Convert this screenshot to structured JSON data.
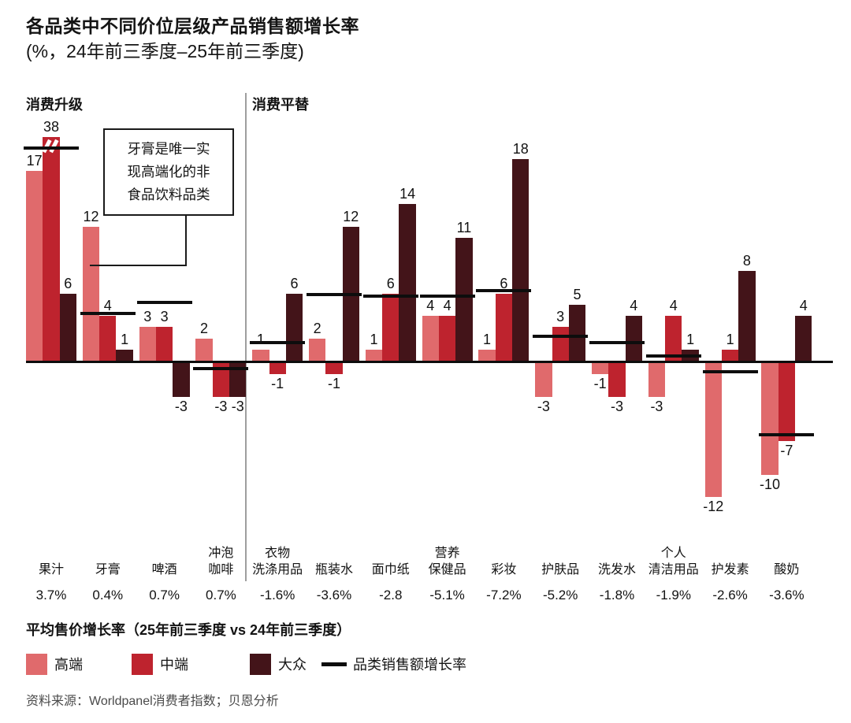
{
  "title": {
    "line1": "各品类中不同价位层级产品销售额增长率",
    "line2": "(%，24年前三季度–25年前三季度)"
  },
  "colors": {
    "high": "#E06A6C",
    "mid": "#BE232E",
    "mass": "#431419",
    "line": "#0D0D0D"
  },
  "annotation": {
    "lines": [
      "牙膏是唯一实",
      "现高端化的非",
      "食品饮料品类"
    ]
  },
  "legend": {
    "header": "平均售价增长率（25年前三季度 vs 24年前三季度）",
    "items": [
      {
        "key": "high",
        "label": "高端"
      },
      {
        "key": "mid",
        "label": "中端"
      },
      {
        "key": "mass",
        "label": "大众"
      }
    ],
    "line_label": "品类销售额增长率"
  },
  "source": "资料来源：Worldpanel消费者指数；贝恩分析",
  "chart_data": {
    "type": "bar",
    "unit": "%",
    "series_names": [
      "高端",
      "中端",
      "大众"
    ],
    "line_series_name": "品类销售额增长率",
    "avg_price_row_label": "平均售价增长率（25年前三季度 vs 24年前三季度）",
    "grid": false,
    "legend_position": "bottom",
    "ylim_display": [
      -13,
      21
    ],
    "sections": [
      {
        "label": "消费升级",
        "category_indexes": [
          0,
          1,
          2,
          3
        ]
      },
      {
        "label": "消费平替",
        "category_indexes": [
          4,
          5,
          6,
          7,
          8,
          9,
          10,
          11,
          12,
          13
        ]
      }
    ],
    "categories": [
      {
        "name": "果汁",
        "name_lines": [
          "果汁"
        ],
        "avg_price_change": "3.7%",
        "values": [
          17,
          38,
          6
        ],
        "category_growth_line": 19,
        "truncated_bar_index": 1,
        "truncated_display_value": 20
      },
      {
        "name": "牙膏",
        "name_lines": [
          "牙膏"
        ],
        "avg_price_change": "0.4%",
        "values": [
          12,
          4,
          1
        ],
        "category_growth_line": 4.2
      },
      {
        "name": "啤酒",
        "name_lines": [
          "啤酒"
        ],
        "avg_price_change": "0.7%",
        "values": [
          3,
          3,
          -3
        ],
        "category_growth_line": 5.2
      },
      {
        "name": "冲泡咖啡",
        "name_lines": [
          "冲泡",
          "咖啡"
        ],
        "avg_price_change": "0.7%",
        "values": [
          2,
          -3,
          -3
        ],
        "category_growth_line": -0.7
      },
      {
        "name": "衣物洗涤用品",
        "name_lines": [
          "衣物",
          "洗涤用品"
        ],
        "avg_price_change": "-1.6%",
        "values": [
          1,
          -1,
          6
        ],
        "category_growth_line": 1.6
      },
      {
        "name": "瓶装水",
        "name_lines": [
          "瓶装水"
        ],
        "avg_price_change": "-3.6%",
        "values": [
          2,
          -1,
          12
        ],
        "category_growth_line": 5.9
      },
      {
        "name": "面巾纸",
        "name_lines": [
          "面巾纸"
        ],
        "avg_price_change": "-2.8",
        "values": [
          1,
          6,
          14
        ],
        "category_growth_line": 5.8
      },
      {
        "name": "营养保健品",
        "name_lines": [
          "营养",
          "保健品"
        ],
        "avg_price_change": "-5.1%",
        "values": [
          4,
          4,
          11
        ],
        "category_growth_line": 5.8
      },
      {
        "name": "彩妆",
        "name_lines": [
          "彩妆"
        ],
        "avg_price_change": "-7.2%",
        "values": [
          1,
          6,
          18
        ],
        "category_growth_line": 6.3
      },
      {
        "name": "护肤品",
        "name_lines": [
          "护肤品"
        ],
        "avg_price_change": "-5.2%",
        "values": [
          -3,
          3,
          5
        ],
        "category_growth_line": 2.2
      },
      {
        "name": "洗发水",
        "name_lines": [
          "洗发水"
        ],
        "avg_price_change": "-1.8%",
        "values": [
          -1,
          -3,
          4
        ],
        "category_growth_line": 1.6
      },
      {
        "name": "个人清洁用品",
        "name_lines": [
          "个人",
          "清洁用品"
        ],
        "avg_price_change": "-1.9%",
        "values": [
          -3,
          4,
          1
        ],
        "category_growth_line": 0.45
      },
      {
        "name": "护发素",
        "name_lines": [
          "护发素"
        ],
        "avg_price_change": "-2.6%",
        "values": [
          -12,
          1,
          8
        ],
        "category_growth_line": -1
      },
      {
        "name": "酸奶",
        "name_lines": [
          "酸奶"
        ],
        "avg_price_change": "-3.6%",
        "values": [
          -10,
          -7,
          4
        ],
        "category_growth_line": -6.6
      }
    ]
  }
}
